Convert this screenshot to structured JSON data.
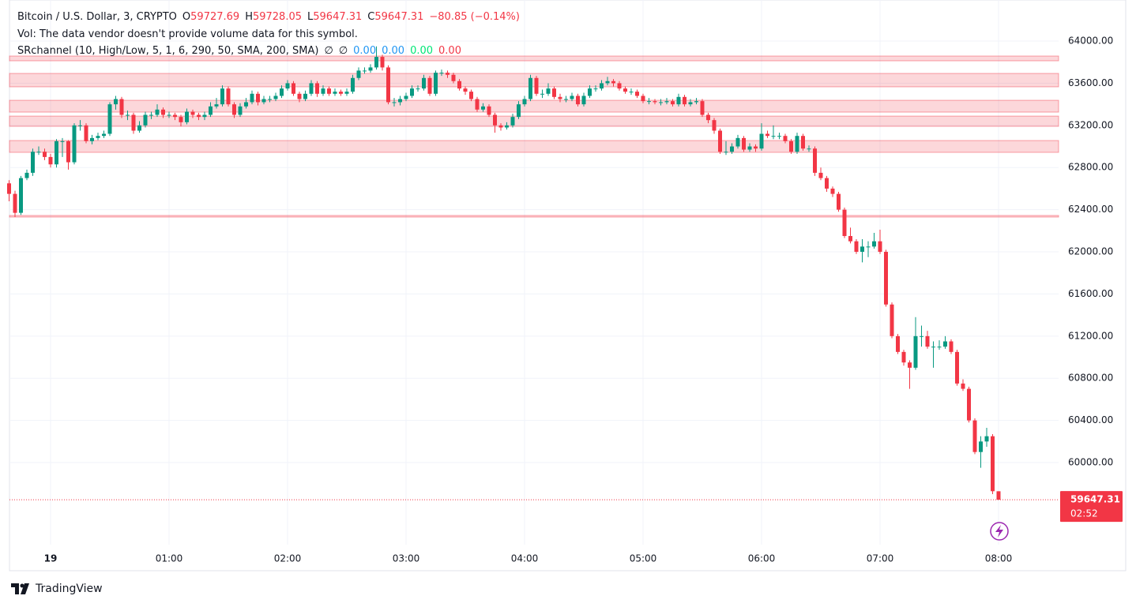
{
  "chart_data": {
    "type": "candlestick",
    "title": "Bitcoin / U.S. Dollar, 3, CRYPTO",
    "ohlc_prefixes": [
      "O",
      "H",
      "L",
      "C"
    ],
    "change": "−80.85 (−0.14%)",
    "volume_note": "Vol: The data vendor doesn't provide volume data for this symbol.",
    "indicator": {
      "name": "SRchannel (10, High/Low, 5, 1, 6, 290, 50, SMA, 200, SMA)",
      "symbols": [
        "∅",
        "∅"
      ],
      "values": [
        0,
        0,
        0,
        0
      ],
      "value_labels": [
        "0.00",
        "0.00",
        "0.00",
        "0.00"
      ],
      "colors": [
        "#2196f3",
        "#2196f3",
        "#00e676",
        "#f23645"
      ]
    },
    "colors": {
      "up": "#089981",
      "down": "#f23645",
      "channel": "#f23645"
    },
    "x": [
      "23:39",
      "23:42",
      "23:45",
      "23:48",
      "23:51",
      "23:54",
      "23:57",
      "00:00",
      "00:03",
      "00:06",
      "00:09",
      "00:12",
      "00:15",
      "00:18",
      "00:21",
      "00:24",
      "00:27",
      "00:30",
      "00:33",
      "00:36",
      "00:39",
      "00:42",
      "00:45",
      "00:48",
      "00:51",
      "00:54",
      "00:57",
      "01:00",
      "01:03",
      "01:06",
      "01:09",
      "01:12",
      "01:15",
      "01:18",
      "01:21",
      "01:24",
      "01:27",
      "01:30",
      "01:33",
      "01:36",
      "01:39",
      "01:42",
      "01:45",
      "01:48",
      "01:51",
      "01:54",
      "01:57",
      "02:00",
      "02:03",
      "02:06",
      "02:09",
      "02:12",
      "02:15",
      "02:18",
      "02:21",
      "02:24",
      "02:27",
      "02:30",
      "02:33",
      "02:36",
      "02:39",
      "02:42",
      "02:45",
      "02:48",
      "02:51",
      "02:54",
      "02:57",
      "03:00",
      "03:03",
      "03:06",
      "03:09",
      "03:12",
      "03:15",
      "03:18",
      "03:21",
      "03:24",
      "03:27",
      "03:30",
      "03:33",
      "03:36",
      "03:39",
      "03:42",
      "03:45",
      "03:48",
      "03:51",
      "03:54",
      "03:57",
      "04:00",
      "04:03",
      "04:06",
      "04:09",
      "04:12",
      "04:15",
      "04:18",
      "04:21",
      "04:24",
      "04:27",
      "04:30",
      "04:33",
      "04:36",
      "04:39",
      "04:42",
      "04:45",
      "04:48",
      "04:51",
      "04:54",
      "04:57",
      "05:00",
      "05:03",
      "05:06",
      "05:09",
      "05:12",
      "05:15",
      "05:18",
      "05:21",
      "05:24",
      "05:27",
      "05:30",
      "05:33",
      "05:36",
      "05:39",
      "05:42",
      "05:45",
      "05:48",
      "05:51",
      "05:54",
      "05:57",
      "06:00",
      "06:03",
      "06:06",
      "06:09",
      "06:12",
      "06:15",
      "06:18",
      "06:21",
      "06:24",
      "06:27",
      "06:30",
      "06:33",
      "06:36",
      "06:39",
      "06:42",
      "06:45",
      "06:48",
      "06:51",
      "06:54",
      "06:57",
      "07:00",
      "07:03",
      "07:06",
      "07:09",
      "07:12",
      "07:15",
      "07:18",
      "07:21",
      "07:24",
      "07:27",
      "07:30",
      "07:33",
      "07:36",
      "07:39",
      "07:42",
      "07:45",
      "07:48",
      "07:51",
      "07:54",
      "07:57",
      "08:00"
    ],
    "open": [
      62650,
      62550,
      62370,
      62700,
      62750,
      62950,
      62950,
      62900,
      62830,
      63050,
      63050,
      62850,
      63200,
      63200,
      63050,
      63080,
      63100,
      63120,
      63400,
      63450,
      63300,
      63300,
      63150,
      63200,
      63300,
      63300,
      63350,
      63300,
      63300,
      63280,
      63230,
      63330,
      63300,
      63280,
      63300,
      63380,
      63400,
      63550,
      63400,
      63300,
      63380,
      63420,
      63500,
      63420,
      63450,
      63450,
      63480,
      63550,
      63600,
      63500,
      63450,
      63500,
      63600,
      63500,
      63550,
      63500,
      63520,
      63500,
      63520,
      63650,
      63720,
      63720,
      63750,
      63850,
      63750,
      63420,
      63420,
      63450,
      63480,
      63550,
      63550,
      63650,
      63500,
      63700,
      63700,
      63680,
      63620,
      63550,
      63520,
      63450,
      63350,
      63380,
      63300,
      63200,
      63180,
      63200,
      63280,
      63400,
      63450,
      63650,
      63500,
      63500,
      63550,
      63470,
      63450,
      63450,
      63480,
      63400,
      63480,
      63550,
      63550,
      63600,
      63620,
      63600,
      63550,
      63520,
      63520,
      63480,
      63430,
      63430,
      63420,
      63420,
      63430,
      63400,
      63470,
      63400,
      63420,
      63430,
      63300,
      63250,
      63150,
      62950,
      62950,
      63000,
      63080,
      62970,
      63000,
      62980,
      63120,
      63100,
      63100,
      63100,
      63050,
      62950,
      63100,
      62980,
      62980,
      62750,
      62700,
      62600,
      62550,
      62400,
      62150,
      62100,
      62000,
      62050,
      62050,
      62100,
      62000,
      61500,
      61200,
      61050,
      60950,
      60900,
      61200,
      61200,
      61100,
      61100,
      61100,
      61150,
      61050,
      60750,
      60700,
      60400,
      60100,
      60200,
      60250,
      59727.69
    ],
    "high": [
      62680,
      62580,
      62720,
      62780,
      62980,
      63000,
      62980,
      62930,
      63070,
      63080,
      63060,
      63220,
      63250,
      63220,
      63110,
      63130,
      63150,
      63420,
      63480,
      63470,
      63340,
      63320,
      63240,
      63330,
      63330,
      63400,
      63370,
      63330,
      63320,
      63300,
      63360,
      63350,
      63320,
      63330,
      63420,
      63460,
      63580,
      63570,
      63420,
      63410,
      63460,
      63530,
      63520,
      63480,
      63480,
      63510,
      63580,
      63630,
      63620,
      63520,
      63530,
      63630,
      63620,
      63580,
      63570,
      63550,
      63540,
      63550,
      63680,
      63750,
      63750,
      63780,
      63950,
      63870,
      63770,
      63460,
      63480,
      63510,
      63580,
      63580,
      63680,
      63670,
      63720,
      63730,
      63720,
      63700,
      63640,
      63570,
      63540,
      63470,
      63410,
      63400,
      63320,
      63220,
      63230,
      63310,
      63430,
      63480,
      63680,
      63670,
      63540,
      63600,
      63570,
      63500,
      63480,
      63510,
      63500,
      63510,
      63580,
      63580,
      63630,
      63660,
      63640,
      63620,
      63570,
      63550,
      63540,
      63500,
      63460,
      63450,
      63450,
      63460,
      63450,
      63500,
      63490,
      63450,
      63460,
      63450,
      63320,
      63270,
      63170,
      63050,
      63030,
      63110,
      63100,
      63030,
      63020,
      63220,
      63150,
      63200,
      63130,
      63120,
      63070,
      63130,
      63120,
      63010,
      63000,
      62800,
      62720,
      62620,
      62570,
      62420,
      62230,
      62120,
      62120,
      62100,
      62180,
      62210,
      62020,
      61520,
      61220,
      61070,
      60970,
      61380,
      61300,
      61250,
      61150,
      61160,
      61200,
      61170,
      61070,
      60790,
      60720,
      60420,
      60250,
      60330,
      60270,
      59728.05
    ],
    "low": [
      62480,
      62330,
      62350,
      62680,
      62720,
      62920,
      62870,
      62800,
      62800,
      62900,
      62780,
      62830,
      63150,
      63030,
      63020,
      63060,
      63080,
      63100,
      63350,
      63270,
      63250,
      63120,
      63130,
      63180,
      63260,
      63280,
      63270,
      63270,
      63250,
      63190,
      63210,
      63270,
      63250,
      63250,
      63280,
      63360,
      63380,
      63380,
      63270,
      63280,
      63360,
      63400,
      63390,
      63400,
      63420,
      63430,
      63460,
      63530,
      63480,
      63420,
      63430,
      63480,
      63470,
      63480,
      63480,
      63480,
      63480,
      63480,
      63500,
      63630,
      63690,
      63700,
      63730,
      63720,
      63400,
      63380,
      63390,
      63430,
      63460,
      63520,
      63530,
      63480,
      63480,
      63670,
      63650,
      63600,
      63530,
      63490,
      63430,
      63330,
      63330,
      63280,
      63130,
      63150,
      63160,
      63180,
      63260,
      63380,
      63430,
      63480,
      63460,
      63480,
      63450,
      63420,
      63420,
      63430,
      63380,
      63380,
      63460,
      63520,
      63530,
      63580,
      63570,
      63530,
      63500,
      63490,
      63460,
      63410,
      63400,
      63400,
      63390,
      63400,
      63380,
      63380,
      63380,
      63380,
      63400,
      63280,
      63220,
      63120,
      62930,
      62920,
      62930,
      62980,
      62950,
      62950,
      62950,
      62960,
      63080,
      63070,
      63070,
      63030,
      62930,
      62930,
      62960,
      62950,
      62720,
      62680,
      62570,
      62520,
      62380,
      62130,
      62080,
      61980,
      61900,
      61950,
      62030,
      61980,
      61480,
      61180,
      61030,
      60920,
      60700,
      60880,
      61100,
      61080,
      60900,
      61070,
      61080,
      61030,
      60730,
      60680,
      60380,
      60080,
      59950,
      60150,
      59700,
      59647.31
    ],
    "close": [
      62550,
      62370,
      62700,
      62750,
      62950,
      62950,
      62900,
      62830,
      63050,
      63050,
      62850,
      63200,
      63200,
      63050,
      63080,
      63100,
      63120,
      63400,
      63450,
      63300,
      63300,
      63150,
      63200,
      63300,
      63300,
      63350,
      63300,
      63300,
      63280,
      63230,
      63330,
      63300,
      63280,
      63300,
      63380,
      63400,
      63550,
      63400,
      63300,
      63380,
      63420,
      63500,
      63420,
      63450,
      63450,
      63480,
      63550,
      63600,
      63500,
      63450,
      63500,
      63600,
      63500,
      63550,
      63500,
      63520,
      63500,
      63520,
      63650,
      63720,
      63720,
      63750,
      63850,
      63750,
      63420,
      63420,
      63450,
      63480,
      63550,
      63550,
      63650,
      63500,
      63700,
      63700,
      63680,
      63620,
      63550,
      63520,
      63450,
      63350,
      63380,
      63300,
      63200,
      63180,
      63200,
      63280,
      63400,
      63450,
      63650,
      63500,
      63500,
      63550,
      63470,
      63450,
      63450,
      63480,
      63400,
      63480,
      63550,
      63550,
      63600,
      63620,
      63600,
      63550,
      63520,
      63520,
      63480,
      63430,
      63430,
      63420,
      63420,
      63430,
      63400,
      63470,
      63400,
      63420,
      63430,
      63300,
      63250,
      63150,
      62950,
      62950,
      63000,
      63080,
      62970,
      63000,
      62980,
      63120,
      63100,
      63100,
      63100,
      63050,
      62950,
      63100,
      62980,
      62980,
      62750,
      62700,
      62600,
      62550,
      62400,
      62150,
      62100,
      62000,
      62050,
      62050,
      62100,
      62000,
      61500,
      61200,
      61050,
      60950,
      60900,
      61200,
      61200,
      61100,
      61100,
      61100,
      61150,
      61050,
      60750,
      60700,
      60400,
      60100,
      60200,
      60250,
      59728.16,
      59647.31
    ],
    "channels": [
      {
        "top": 63858,
        "bottom": 63813
      },
      {
        "top": 63693,
        "bottom": 63566
      },
      {
        "top": 63438,
        "bottom": 63326
      },
      {
        "top": 63288,
        "bottom": 63191
      },
      {
        "top": 63056,
        "bottom": 62944
      },
      {
        "top": 62345,
        "bottom": 62330
      }
    ],
    "ylim": [
      59221,
      64315
    ],
    "yticks": [
      {
        "value": 60000,
        "label": "60000.00"
      },
      {
        "value": 60400,
        "label": "60400.00"
      },
      {
        "value": 60800,
        "label": "60800.00"
      },
      {
        "value": 61200,
        "label": "61200.00"
      },
      {
        "value": 61600,
        "label": "61600.00"
      },
      {
        "value": 62000,
        "label": "62000.00"
      },
      {
        "value": 62400,
        "label": "62400.00"
      },
      {
        "value": 62800,
        "label": "62800.00"
      },
      {
        "value": 63200,
        "label": "63200.00"
      },
      {
        "value": 63600,
        "label": "63600.00"
      },
      {
        "value": 64000,
        "label": "64000.00"
      }
    ],
    "xticks": [
      {
        "value": "00:00",
        "label": "19"
      },
      "01:00",
      "02:00",
      "03:00",
      "04:00",
      "05:00",
      "06:00",
      "07:00",
      "08:00"
    ],
    "grid": true,
    "countdown": "02:52"
  },
  "footer": {
    "brand": "TradingView"
  }
}
